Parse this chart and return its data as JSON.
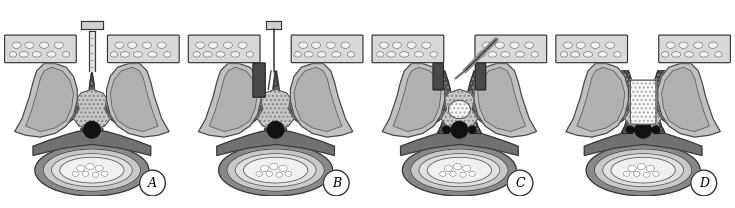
{
  "panels": [
    "A",
    "B",
    "C",
    "D"
  ],
  "bg_color": "#ffffff",
  "figsize": [
    7.35,
    2.08
  ],
  "dpi": 100,
  "colors": {
    "light_gray_muscle": "#c0c0c0",
    "medium_gray": "#a0a0a0",
    "dark_gray_bone": "#686868",
    "very_dark": "#1a1a1a",
    "outline": "#000000",
    "white": "#ffffff",
    "off_white": "#f0f0f0",
    "near_white": "#e8e8e8",
    "light_tissue": "#d8d8d8",
    "dark_tissue": "#484848",
    "dotted_tissue": "#585858",
    "vertebra_base": "#787878",
    "skin_rect": "#d0d0d0",
    "bone_inner": "#e0e0e0",
    "light_bg": "#b8b8b8"
  }
}
